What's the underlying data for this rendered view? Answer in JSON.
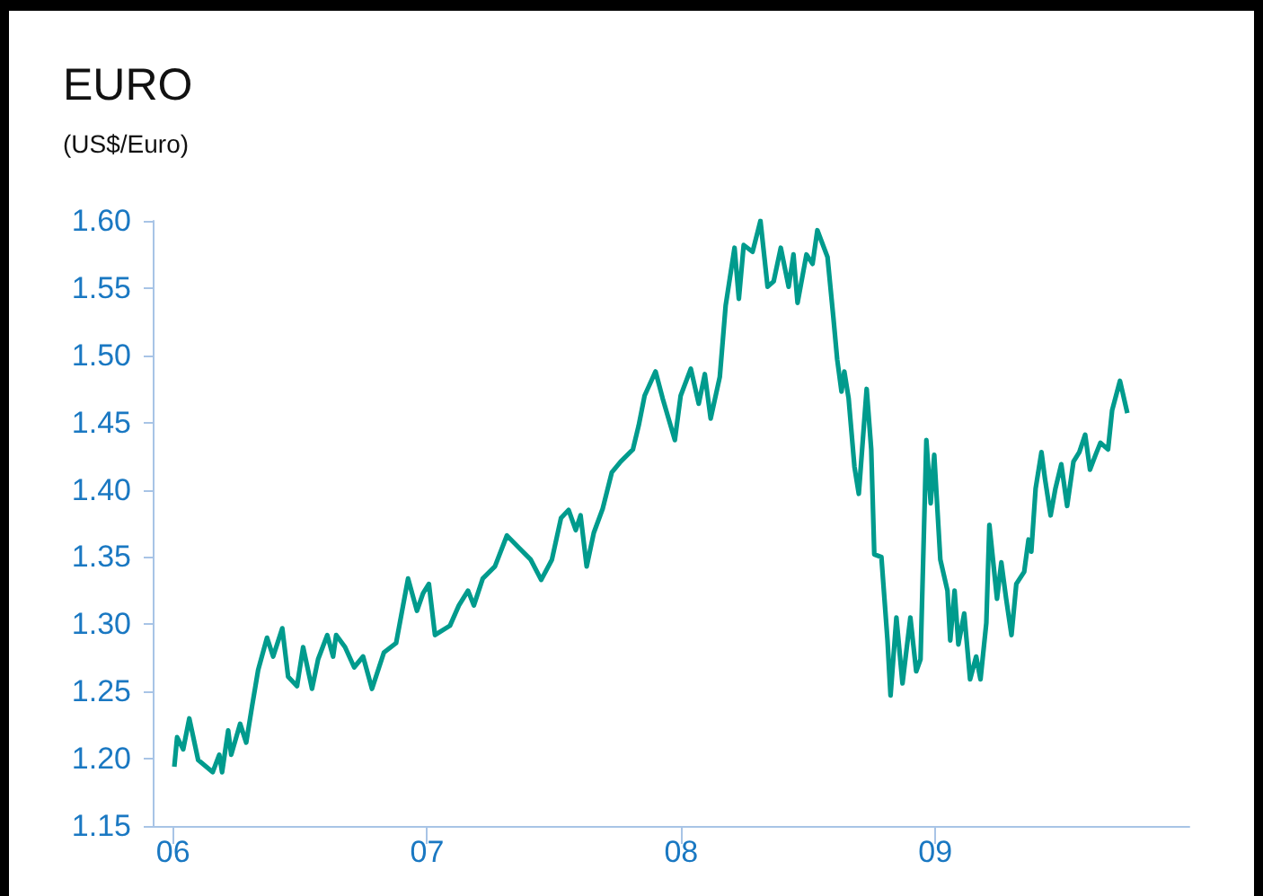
{
  "chart_data": {
    "type": "line",
    "title": "EURO",
    "subtitle": "(US$/Euro)",
    "x": [
      2006.005,
      2006.016,
      2006.04,
      2006.064,
      2006.099,
      2006.156,
      2006.182,
      2006.193,
      2006.217,
      2006.229,
      2006.264,
      2006.288,
      2006.311,
      2006.335,
      2006.37,
      2006.394,
      2006.43,
      2006.453,
      2006.488,
      2006.512,
      2006.547,
      2006.571,
      2006.607,
      2006.63,
      2006.642,
      2006.677,
      2006.713,
      2006.748,
      2006.783,
      2006.83,
      2006.878,
      2006.925,
      2006.96,
      2006.984,
      2007.007,
      2007.031,
      2007.09,
      2007.125,
      2007.161,
      2007.184,
      2007.219,
      2007.267,
      2007.314,
      2007.361,
      2007.408,
      2007.449,
      2007.491,
      2007.527,
      2007.557,
      2007.585,
      2007.604,
      2007.628,
      2007.656,
      2007.691,
      2007.727,
      2007.762,
      2007.81,
      2007.833,
      2007.856,
      2007.899,
      2007.927,
      2007.975,
      2007.998,
      2008.038,
      2008.069,
      2008.093,
      2008.116,
      2008.152,
      2008.175,
      2008.21,
      2008.227,
      2008.246,
      2008.281,
      2008.312,
      2008.34,
      2008.364,
      2008.392,
      2008.423,
      2008.442,
      2008.458,
      2008.493,
      2008.517,
      2008.536,
      2008.576,
      2008.599,
      2008.614,
      2008.631,
      2008.642,
      2008.659,
      2008.682,
      2008.699,
      2008.73,
      2008.748,
      2008.76,
      2008.788,
      2008.812,
      2008.824,
      2008.847,
      2008.871,
      2008.902,
      2008.925,
      2008.942,
      2008.965,
      2008.982,
      2008.996,
      2009.02,
      2009.048,
      2009.059,
      2009.076,
      2009.091,
      2009.114,
      2009.137,
      2009.161,
      2009.178,
      2009.201,
      2009.213,
      2009.243,
      2009.26,
      2009.279,
      2009.3,
      2009.319,
      2009.35,
      2009.367,
      2009.378,
      2009.395,
      2009.418,
      2009.432,
      2009.454,
      2009.473,
      2009.496,
      2009.519,
      2009.544,
      2009.567,
      2009.59,
      2009.609,
      2009.631,
      2009.65,
      2009.68,
      2009.696,
      2009.727,
      2009.756
    ],
    "series": [
      {
        "color": "#009b8d",
        "values": [
          1.194,
          1.216,
          1.207,
          1.23,
          1.199,
          1.19,
          1.203,
          1.19,
          1.221,
          1.203,
          1.226,
          1.212,
          1.239,
          1.266,
          1.29,
          1.276,
          1.297,
          1.261,
          1.254,
          1.283,
          1.252,
          1.274,
          1.292,
          1.276,
          1.292,
          1.283,
          1.268,
          1.276,
          1.252,
          1.279,
          1.286,
          1.334,
          1.31,
          1.323,
          1.33,
          1.292,
          1.299,
          1.314,
          1.325,
          1.314,
          1.334,
          1.343,
          1.366,
          1.357,
          1.348,
          1.333,
          1.348,
          1.379,
          1.385,
          1.37,
          1.381,
          1.343,
          1.368,
          1.386,
          1.413,
          1.421,
          1.43,
          1.448,
          1.47,
          1.488,
          1.468,
          1.437,
          1.47,
          1.49,
          1.464,
          1.486,
          1.453,
          1.484,
          1.537,
          1.58,
          1.542,
          1.582,
          1.577,
          1.6,
          1.551,
          1.555,
          1.58,
          1.551,
          1.575,
          1.539,
          1.575,
          1.568,
          1.593,
          1.573,
          1.528,
          1.497,
          1.473,
          1.488,
          1.468,
          1.417,
          1.397,
          1.475,
          1.43,
          1.352,
          1.35,
          1.288,
          1.247,
          1.305,
          1.256,
          1.305,
          1.265,
          1.274,
          1.437,
          1.39,
          1.426,
          1.348,
          1.325,
          1.288,
          1.325,
          1.285,
          1.308,
          1.259,
          1.276,
          1.259,
          1.301,
          1.374,
          1.319,
          1.346,
          1.319,
          1.292,
          1.33,
          1.339,
          1.363,
          1.354,
          1.401,
          1.428,
          1.408,
          1.381,
          1.401,
          1.419,
          1.388,
          1.421,
          1.428,
          1.441,
          1.415,
          1.426,
          1.435,
          1.43,
          1.459,
          1.481,
          1.457
        ]
      }
    ],
    "xlim": [
      2005.92,
      2010.0
    ],
    "xticks": [
      {
        "value": 2006,
        "label": "06"
      },
      {
        "value": 2007,
        "label": "07"
      },
      {
        "value": 2008,
        "label": "08"
      },
      {
        "value": 2009,
        "label": "09"
      }
    ],
    "ylim": [
      1.15,
      1.6
    ],
    "yticks": [
      {
        "value": 1.15,
        "label": "1.15"
      },
      {
        "value": 1.2,
        "label": "1.20"
      },
      {
        "value": 1.25,
        "label": "1.25"
      },
      {
        "value": 1.3,
        "label": "1.30"
      },
      {
        "value": 1.35,
        "label": "1.35"
      },
      {
        "value": 1.4,
        "label": "1.40"
      },
      {
        "value": 1.45,
        "label": "1.45"
      },
      {
        "value": 1.5,
        "label": "1.50"
      },
      {
        "value": 1.55,
        "label": "1.55"
      },
      {
        "value": 1.6,
        "label": "1.60"
      }
    ]
  }
}
